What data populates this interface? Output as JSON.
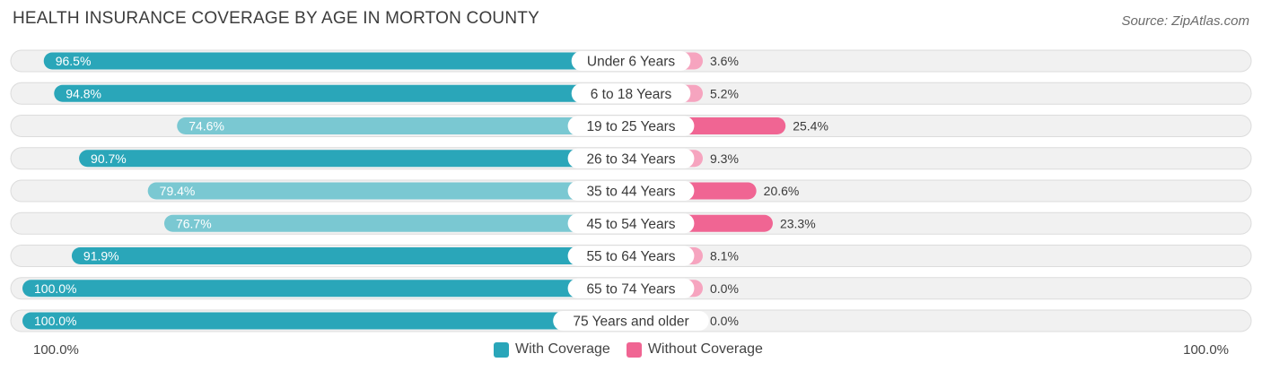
{
  "title": "HEALTH INSURANCE COVERAGE BY AGE IN MORTON COUNTY",
  "source": "Source: ZipAtlas.com",
  "colors": {
    "with_dark": "#2aa6b9",
    "with_light": "#7ac8d2",
    "without_dark": "#f06593",
    "without_light": "#f6a4bf",
    "row_bg": "#f1f1f1",
    "row_border": "#dcdcdc"
  },
  "chart_data": {
    "type": "bar",
    "orientation": "diverging-horizontal",
    "title": "HEALTH INSURANCE COVERAGE BY AGE IN MORTON COUNTY",
    "categories": [
      "Under 6 Years",
      "6 to 18 Years",
      "19 to 25 Years",
      "26 to 34 Years",
      "35 to 44 Years",
      "45 to 54 Years",
      "55 to 64 Years",
      "65 to 74 Years",
      "75 Years and older"
    ],
    "series": [
      {
        "name": "With Coverage",
        "values": [
          96.5,
          94.8,
          74.6,
          90.7,
          79.4,
          76.7,
          91.9,
          100.0,
          100.0
        ],
        "labels": [
          "96.5%",
          "94.8%",
          "74.6%",
          "90.7%",
          "79.4%",
          "76.7%",
          "91.9%",
          "100.0%",
          "100.0%"
        ]
      },
      {
        "name": "Without Coverage",
        "values": [
          3.6,
          5.2,
          25.4,
          9.3,
          20.6,
          23.3,
          8.1,
          0.0,
          0.0
        ],
        "labels": [
          "3.6%",
          "5.2%",
          "25.4%",
          "9.3%",
          "20.6%",
          "23.3%",
          "8.1%",
          "0.0%",
          "0.0%"
        ]
      }
    ],
    "xlim": [
      -100,
      100
    ],
    "axis_left_label": "100.0%",
    "axis_right_label": "100.0%",
    "legend_position": "bottom-center"
  },
  "legend": {
    "with_label": "With Coverage",
    "without_label": "Without Coverage"
  }
}
